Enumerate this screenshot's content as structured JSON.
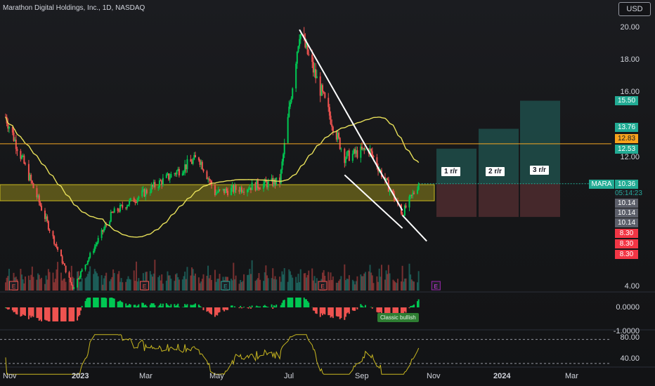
{
  "header": {
    "title": "Marathon Digital Holdings, Inc., 1D, NASDAQ",
    "currency_button": "USD"
  },
  "price_axis": {
    "ticks": [
      "20.00",
      "18.00",
      "16.00",
      "12.00",
      "4.00"
    ]
  },
  "price_tags": {
    "symbol": "MARA",
    "last": "10.36",
    "countdown": "05:14:23",
    "t1": "15.50",
    "t2": "13.76",
    "t3": "12.53",
    "orange": "12.83",
    "ma1": "10.14",
    "ma2": "10.14",
    "ma3": "10.14",
    "stop1": "8.30",
    "stop2": "8.30",
    "stop3": "8.30"
  },
  "trade_boxes": [
    "1 r/r",
    "2 r/r",
    "3 r/r"
  ],
  "indicator1": {
    "zero_label": "0.0000",
    "lower_label": "-1.0000",
    "annotation": "Classic bullish"
  },
  "indicator2": {
    "upper": "80.00",
    "lower": "40.00"
  },
  "time_axis": [
    {
      "label": "Nov",
      "bold": false
    },
    {
      "label": "2023",
      "bold": true
    },
    {
      "label": "Mar",
      "bold": false
    },
    {
      "label": "May",
      "bold": false
    },
    {
      "label": "Jul",
      "bold": false
    },
    {
      "label": "Sep",
      "bold": false
    },
    {
      "label": "Nov",
      "bold": false
    },
    {
      "label": "2024",
      "bold": true
    },
    {
      "label": "Mar",
      "bold": false
    }
  ],
  "earnings_markers": [
    "E",
    "E",
    "E",
    "E",
    "E"
  ],
  "colors": {
    "up": "#26a69a",
    "up_bright": "#00c853",
    "down": "#ef5350",
    "ma": "#e8e05a",
    "zone": "#c9b820",
    "orange_line": "#f5a623",
    "target_fill": "#1f4d4a",
    "stop_fill": "#4a2a2d",
    "trendline": "#ffffff",
    "rsi_line": "#c9b820",
    "tag_green": "#22ab94",
    "tag_orange": "#f7a21b",
    "tag_red": "#f23645",
    "tag_gray": "#5d606b"
  },
  "chart_data": {
    "type": "candlestick",
    "symbol": "MARA",
    "timeframe": "1D",
    "x_range": [
      "2022-11-01",
      "2024-03-31"
    ],
    "ylim": [
      4,
      21
    ],
    "key_points": [
      {
        "date": "2022-11-01",
        "price": 14.5
      },
      {
        "date": "2022-12-29",
        "price": 3.9
      },
      {
        "date": "2023-02-01",
        "price": 8.5
      },
      {
        "date": "2023-04-17",
        "price": 12.0
      },
      {
        "date": "2023-05-01",
        "price": 9.8
      },
      {
        "date": "2023-06-26",
        "price": 10.5
      },
      {
        "date": "2023-07-13",
        "price": 19.8
      },
      {
        "date": "2023-08-21",
        "price": 12.0
      },
      {
        "date": "2023-09-11",
        "price": 12.5
      },
      {
        "date": "2023-10-10",
        "price": 8.5
      },
      {
        "date": "2023-10-24",
        "price": 10.36
      }
    ],
    "moving_average_value": 10.14,
    "horizontal_level": 12.83,
    "support_zone": [
      9.3,
      10.3
    ],
    "trade_setup": {
      "entry": 10.36,
      "stop": 8.3,
      "targets": [
        12.53,
        13.76,
        15.5
      ]
    },
    "volume_relative": [
      0.3,
      0.4,
      0.35,
      0.5,
      0.45,
      0.6,
      0.4,
      0.55,
      0.5,
      0.7,
      0.45,
      0.35
    ],
    "oscillator_range": [
      -1,
      1
    ],
    "rsi_levels": [
      40,
      80
    ],
    "rsi_last": 64
  }
}
